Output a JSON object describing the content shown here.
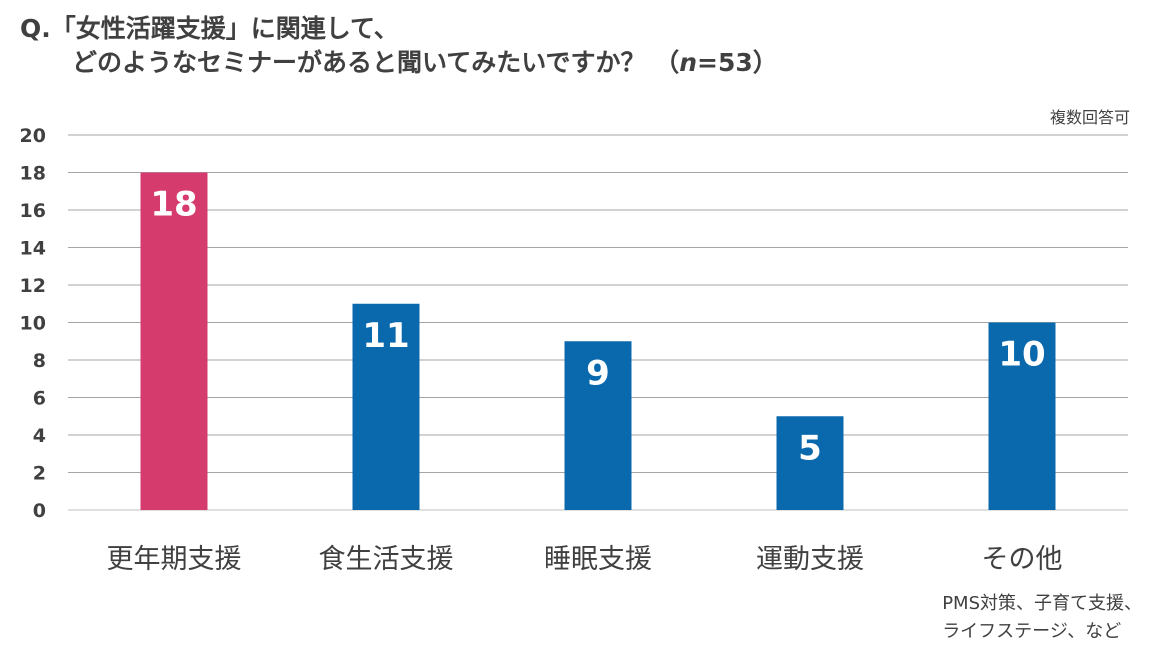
{
  "question": {
    "line1": "Q.「女性活躍支援」に関連して、",
    "line2_prefix": "どのようなセミナーがあると聞いてみたいですか？ （",
    "line2_n": "n",
    "line2_suffix": "=53）"
  },
  "note": "複数回答可",
  "footnote": {
    "line1": "PMS対策、子育て支援、",
    "line2": "ライフステージ、など"
  },
  "colors": {
    "highlight": "#d63b6e",
    "bar": "#0a69ad",
    "grid": "#a6a6a6",
    "label": "#ffffff"
  },
  "chart_data": {
    "type": "bar",
    "categories": [
      "更年期支援",
      "食生活支援",
      "睡眠支援",
      "運動支援",
      "その他"
    ],
    "values": [
      18,
      11,
      9,
      5,
      10
    ],
    "highlight_index": 0,
    "ylim": [
      0,
      20
    ],
    "yticks": [
      0,
      2,
      4,
      6,
      8,
      10,
      12,
      14,
      16,
      18,
      20
    ],
    "grid": true,
    "data_labels": true
  }
}
